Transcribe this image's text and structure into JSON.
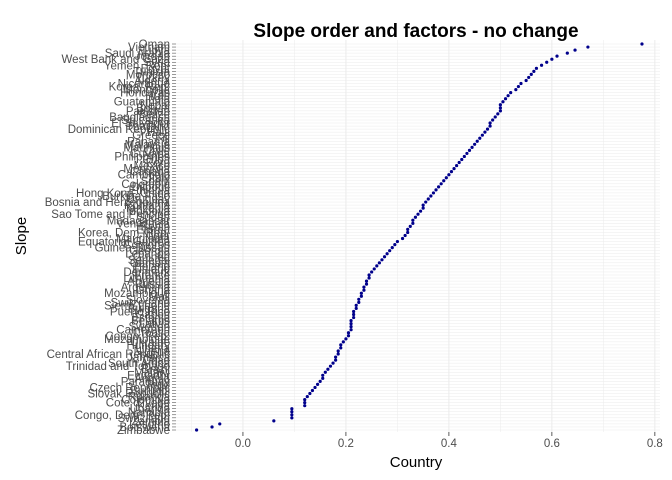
{
  "chart_data": {
    "type": "scatter",
    "title": "Slope order and factors - no change",
    "xlabel": "Country",
    "ylabel": "Slope",
    "xlim": [
      -0.13,
      0.81
    ],
    "xticks": [
      0.0,
      0.2,
      0.4,
      0.6,
      0.8
    ],
    "xtick_labels": [
      "0.0",
      "0.2",
      "0.4",
      "0.6",
      "0.8"
    ],
    "grid": true,
    "colors": {
      "point": "#00008b",
      "grid": "#ebebeb",
      "panel": "#ffffff",
      "tick": "#4d4d4d"
    },
    "categories": [
      "Zimbabwe",
      "Botswana",
      "Lesotho",
      "Zambia",
      "Swaziland",
      "Congo, Dem. Rep.",
      "Namibia",
      "Uganda",
      "Kenya",
      "Cote d'Ivoire",
      "Colombia",
      "Rwanda",
      "Slovak Republic",
      "Burundi",
      "Czech Republic",
      "Togo",
      "Paraguay",
      "Angola",
      "Ecuador",
      "Malawi",
      "Brazil",
      "Trinidad and Tobago",
      "South Africa",
      "Chad",
      "Jamaica",
      "Central African Republic",
      "Nigeria",
      "Liberia",
      "Hungary",
      "Ukraine",
      "Mozambique",
      "Congo, Rep.",
      "Croatia",
      "Cameroon",
      "Sweden",
      "Latvia",
      "Belarus",
      "Estonia",
      "Gabon",
      "Puerto Rico",
      "Bulgaria",
      "Sierra Leone",
      "Switzerland",
      "Slovenia",
      "Mali",
      "Mozambique",
      "Ghana",
      "Argentina",
      "Russia",
      "Armenia",
      "Lithuania",
      "France",
      "Denmark",
      "Finland",
      "Poland",
      "Gambia",
      "Senegal",
      "Guinea",
      "Lebanon",
      "Georgia",
      "Guinea-Bissau",
      "Comoros",
      "Equatorial Guinea",
      "Mauritania",
      "Niger",
      "Korea, Dem. Rep.",
      "Eritrea",
      "Benin",
      "Venezuela",
      "Madagascar",
      "Sudan",
      "Sao Tome and Principe",
      "Moldova",
      "Tanzania",
      "Romania",
      "Bosnia and Herzegovina",
      "Uruguay",
      "Burkina Faso",
      "Hong Kong, China",
      "Ethiopia",
      "Djibouti",
      "Colombia",
      "Spain",
      "Italy",
      "Cambodia",
      "Canada",
      "Mongolia",
      "Mexico",
      "Peru",
      "Cuba",
      "Philippines",
      "Guyana",
      "Chile",
      "Mauritius",
      "Malaysia",
      "Panama",
      "Fiji",
      "Greece",
      "Haiti",
      "Dominican Republic",
      "Thailand",
      "El Salvador",
      "Sri Lanka",
      "Bangladesh",
      "Belize",
      "Pakistan",
      "Bolivia",
      "Nepal",
      "Guatemala",
      "India",
      "Iran",
      "Honduras",
      "Mongolia",
      "Korea, Rep.",
      "Nicaragua",
      "Algeria",
      "Turkey",
      "Morocco",
      "Tunisia",
      "Egypt",
      "Yemen, Rep.",
      "Syria",
      "West Bank and Gaza",
      "Jordan",
      "Saudi Arabia",
      "Libya",
      "Vietnam",
      "Oman"
    ],
    "values": [
      -0.09,
      -0.06,
      -0.045,
      0.06,
      0.095,
      0.095,
      0.095,
      0.095,
      0.12,
      0.12,
      0.12,
      0.125,
      0.13,
      0.135,
      0.14,
      0.145,
      0.15,
      0.155,
      0.155,
      0.16,
      0.165,
      0.17,
      0.175,
      0.18,
      0.18,
      0.185,
      0.185,
      0.19,
      0.19,
      0.195,
      0.2,
      0.205,
      0.205,
      0.21,
      0.21,
      0.21,
      0.21,
      0.215,
      0.215,
      0.215,
      0.22,
      0.22,
      0.225,
      0.225,
      0.23,
      0.23,
      0.235,
      0.235,
      0.24,
      0.24,
      0.245,
      0.245,
      0.25,
      0.255,
      0.26,
      0.265,
      0.27,
      0.275,
      0.28,
      0.285,
      0.29,
      0.295,
      0.3,
      0.31,
      0.315,
      0.32,
      0.32,
      0.325,
      0.33,
      0.33,
      0.335,
      0.34,
      0.345,
      0.35,
      0.35,
      0.355,
      0.36,
      0.365,
      0.37,
      0.375,
      0.38,
      0.385,
      0.39,
      0.395,
      0.4,
      0.405,
      0.41,
      0.415,
      0.42,
      0.425,
      0.43,
      0.435,
      0.44,
      0.445,
      0.45,
      0.455,
      0.46,
      0.465,
      0.47,
      0.475,
      0.48,
      0.48,
      0.485,
      0.49,
      0.495,
      0.5,
      0.5,
      0.5,
      0.505,
      0.51,
      0.515,
      0.52,
      0.53,
      0.535,
      0.54,
      0.55,
      0.555,
      0.56,
      0.565,
      0.57,
      0.58,
      0.59,
      0.6,
      0.61,
      0.63,
      0.645,
      0.67,
      0.775
    ],
    "visible_category_labels": [
      "Zimbabwe",
      "Botswana",
      "Congo, Dem. Rep.",
      "Uganda",
      "Colombia",
      "Slovak Republic",
      "Czech Republic",
      "Paraguay",
      "Trinidad and Tobago",
      "South Africa",
      "Central African Republic",
      "Ukraine",
      "Congo, Rep.",
      "Sweden",
      "Puerto Rico",
      "Sierra Leone",
      "Mozambique",
      "Argentina",
      "Armenia",
      "France",
      "Senegal",
      "Lebanon",
      "Guinea-Bissau",
      "Equatorial Guinea",
      "Korea, Dem. Rep.",
      "Venezuela",
      "Sao Tome and Principe",
      "Bosnia and Herzegovina",
      "Burkina Faso",
      "Hong Kong, China",
      "Colombia",
      "Canada",
      "Mexico",
      "Philippines",
      "Malaysia",
      "Greece",
      "Dominican Republic",
      "El Salvador",
      "Bangladesh",
      "Nepal",
      "Guatemala",
      "India",
      "Korea, Rep.",
      "Nicaragua",
      "Tunisia",
      "West Bank and Gaza",
      "Saudi Arabia",
      "Vietnam",
      "Oman"
    ]
  }
}
